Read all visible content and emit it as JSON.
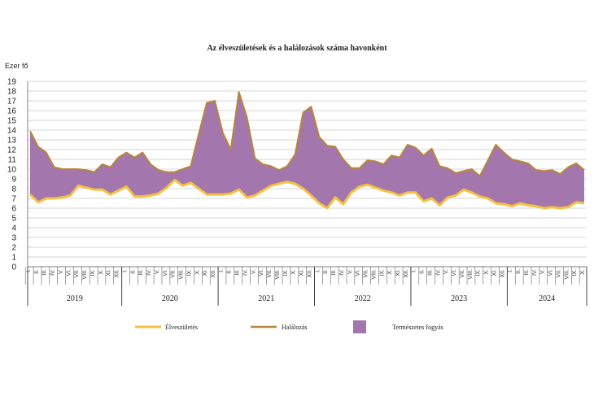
{
  "chart_data": {
    "type": "area",
    "title": "Az élveszületések és a halálozások száma havonként",
    "ylabel": "Ezer fő",
    "ylim": [
      0,
      19
    ],
    "yticks": [
      0,
      1,
      2,
      3,
      4,
      5,
      6,
      7,
      8,
      9,
      10,
      11,
      12,
      13,
      14,
      15,
      16,
      17,
      18,
      19
    ],
    "grid": true,
    "legend_position": "bottom",
    "months": [
      "I.",
      "II.",
      "III.",
      "IV.",
      "V.",
      "VI.",
      "VII.",
      "VIII.",
      "IX.",
      "X.",
      "XI.",
      "XII."
    ],
    "years": [
      "2019",
      "2020",
      "2021",
      "2022",
      "2023",
      "2024"
    ],
    "x_count": 58,
    "series": [
      {
        "name": "Élveszületés",
        "color": "#f5c142",
        "values": [
          7.4,
          6.6,
          7.0,
          7.0,
          7.1,
          7.3,
          8.3,
          8.1,
          7.9,
          7.9,
          7.4,
          7.8,
          8.2,
          7.2,
          7.2,
          7.3,
          7.5,
          8.1,
          8.9,
          8.3,
          8.6,
          8.0,
          7.4,
          7.4,
          7.4,
          7.5,
          7.9,
          7.1,
          7.3,
          7.8,
          8.3,
          8.5,
          8.7,
          8.5,
          8.0,
          7.3,
          6.5,
          6.0,
          7.1,
          6.4,
          7.6,
          8.2,
          8.4,
          8.1,
          7.8,
          7.6,
          7.3,
          7.6,
          7.6,
          6.7,
          7.0,
          6.3,
          7.1,
          7.3,
          7.9,
          7.6,
          7.2,
          7.0
        ]
      },
      {
        "name": "Halálozás",
        "color": "#b8863b",
        "values": [
          13.9,
          12.3,
          11.7,
          10.2,
          10.0,
          10.0,
          10.0,
          9.9,
          9.7,
          10.5,
          10.2,
          11.2,
          11.7,
          11.2,
          11.7,
          10.5,
          9.9,
          9.7,
          9.7,
          10.0,
          10.3,
          13.6,
          16.8,
          17.0,
          13.7,
          12.0,
          17.9,
          15.3,
          11.1,
          10.5,
          10.3,
          9.9,
          10.3,
          11.5,
          15.8,
          16.4,
          13.3,
          12.4,
          12.3,
          11.0,
          10.1,
          10.1,
          10.9,
          10.8,
          10.5,
          11.4,
          11.2,
          12.5,
          12.2,
          11.4,
          12.1,
          10.3,
          10.1,
          9.6,
          9.8,
          10.0,
          9.3,
          10.9
        ]
      },
      {
        "name": "Természetes fogyás",
        "color": "#a376ad",
        "type": "band",
        "between": [
          "Élveszületés",
          "Halálozás"
        ]
      }
    ]
  },
  "chart2_tail": {
    "births": [
      6.5,
      6.4,
      6.2,
      6.5,
      6.3,
      6.2,
      6.0,
      6.1,
      6.0,
      6.1,
      6.6,
      6.5
    ],
    "deaths": [
      12.5,
      11.7,
      11.0,
      10.8,
      10.6,
      9.9,
      9.8,
      9.9,
      9.5,
      10.2,
      10.6,
      9.9
    ]
  }
}
